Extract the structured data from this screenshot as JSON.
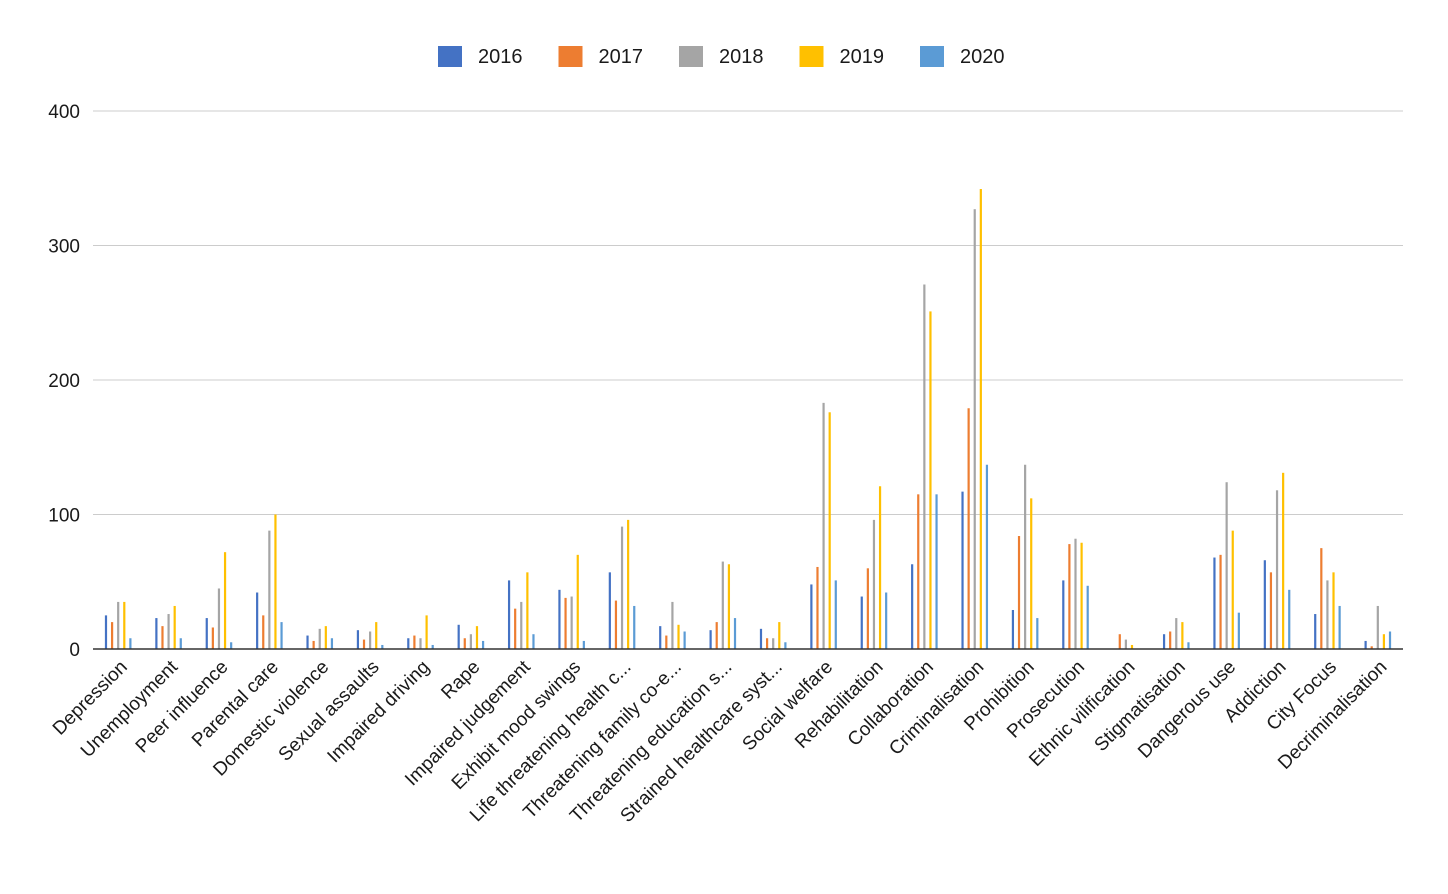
{
  "chart_data": {
    "type": "bar",
    "title": "",
    "xlabel": "",
    "ylabel": "",
    "ylim": [
      0,
      400
    ],
    "yticks": [
      0,
      100,
      200,
      300,
      400
    ],
    "grid": true,
    "legend_position": "top",
    "categories": [
      "Depression",
      "Unemployment",
      "Peer influence",
      "Parental care",
      "Domestic violence",
      "Sexual assaults",
      "Impaired driving",
      "Rape",
      "Impaired judgement",
      "Exhibit mood swings",
      "Life threatening health c...",
      "Threatening family co-e...",
      "Threatening education s...",
      "Strained healthcare syst...",
      "Social welfare",
      "Rehabilitation",
      "Collaboration",
      "Criminalisation",
      "Prohibition",
      "Prosecution",
      "Ethnic vilification",
      "Stigmatisation",
      "Dangerous use",
      "Addiction",
      "City Focus",
      "Decriminalisation"
    ],
    "series": [
      {
        "name": "2016",
        "color": "#4472C4",
        "values": [
          25,
          23,
          23,
          42,
          10,
          14,
          8,
          18,
          51,
          44,
          57,
          17,
          14,
          15,
          48,
          39,
          63,
          117,
          29,
          51,
          0,
          11,
          68,
          66,
          26,
          6
        ]
      },
      {
        "name": "2017",
        "color": "#ED7D31",
        "values": [
          20,
          17,
          16,
          25,
          6,
          7,
          10,
          8,
          30,
          38,
          36,
          10,
          20,
          8,
          61,
          60,
          115,
          179,
          84,
          78,
          11,
          13,
          70,
          57,
          75,
          2
        ]
      },
      {
        "name": "2018",
        "color": "#A5A5A5",
        "values": [
          35,
          26,
          45,
          88,
          15,
          13,
          8,
          11,
          35,
          39,
          91,
          35,
          65,
          8,
          183,
          96,
          271,
          327,
          137,
          82,
          7,
          23,
          124,
          118,
          51,
          32
        ]
      },
      {
        "name": "2019",
        "color": "#FFC000",
        "values": [
          35,
          32,
          72,
          100,
          17,
          20,
          25,
          17,
          57,
          70,
          96,
          18,
          63,
          20,
          176,
          121,
          251,
          342,
          112,
          79,
          3,
          20,
          88,
          131,
          57,
          11
        ]
      },
      {
        "name": "2020",
        "color": "#5B9BD5",
        "values": [
          8,
          8,
          5,
          20,
          8,
          3,
          3,
          6,
          11,
          6,
          32,
          13,
          23,
          5,
          51,
          42,
          115,
          137,
          23,
          47,
          0,
          5,
          27,
          44,
          32,
          13
        ]
      }
    ]
  }
}
